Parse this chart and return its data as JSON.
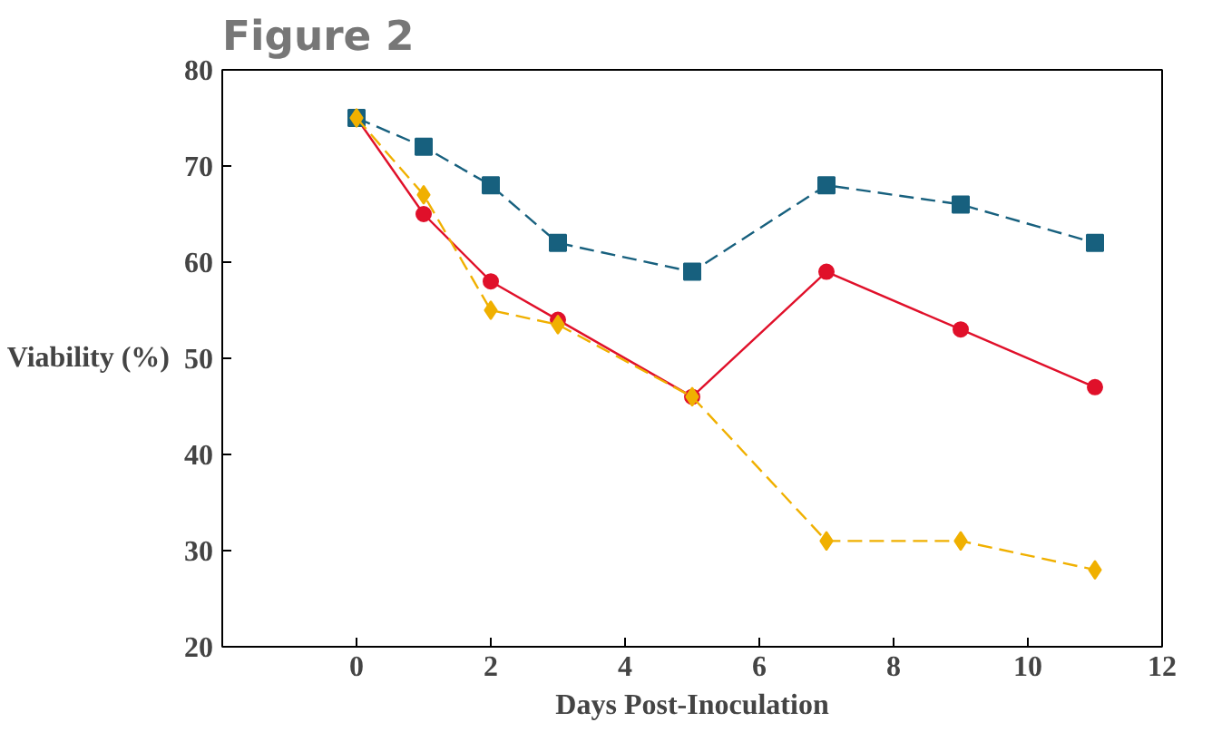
{
  "chart_data": {
    "type": "line",
    "title": "Figure 2",
    "xlabel": "Days Post-Inoculation",
    "ylabel": "Viability (%)",
    "x": [
      0,
      1,
      2,
      3,
      5,
      7,
      9,
      11
    ],
    "series": [
      {
        "color": "#e0102a",
        "values": [
          75,
          65,
          58,
          54,
          46,
          59,
          53,
          47
        ],
        "marker": "circle",
        "line_style": "solid"
      },
      {
        "color": "#17607e",
        "values": [
          75,
          72,
          68,
          62,
          59,
          68,
          66,
          62
        ],
        "marker": "square",
        "line_style": "dashed"
      },
      {
        "color": "#f0b000",
        "values": [
          75,
          67,
          55,
          53.5,
          46,
          31,
          31,
          28
        ],
        "marker": "diamond",
        "line_style": "dashed"
      }
    ],
    "xlim": [
      -2,
      12
    ],
    "xticks": [
      0,
      2,
      4,
      6,
      8,
      10,
      12
    ],
    "ylim": [
      20,
      80
    ],
    "yticks": [
      20,
      30,
      40,
      50,
      60,
      70,
      80
    ],
    "grid": false
  }
}
